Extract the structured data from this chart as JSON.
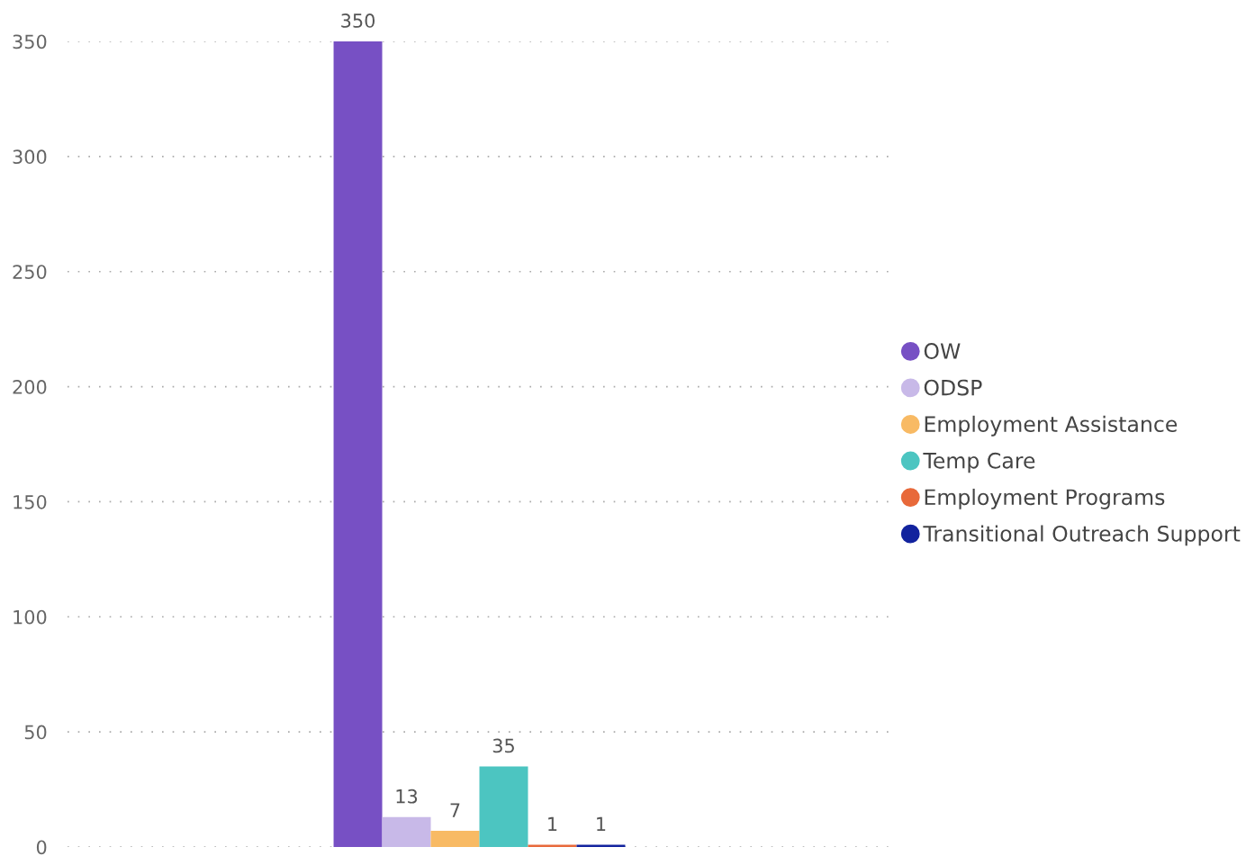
{
  "chart_data": {
    "type": "bar",
    "categories": [
      null
    ],
    "series": [
      {
        "name": "OW",
        "color": "#7750c4",
        "values": [
          350
        ]
      },
      {
        "name": "ODSP",
        "color": "#c8b9e8",
        "values": [
          13
        ]
      },
      {
        "name": "Employment Assistance",
        "color": "#f8ba64",
        "values": [
          7
        ]
      },
      {
        "name": "Temp Care",
        "color": "#4cc5c1",
        "values": [
          35
        ]
      },
      {
        "name": "Employment Programs",
        "color": "#e8693a",
        "values": [
          1
        ]
      },
      {
        "name": "Transitional Outreach Support",
        "color": "#12239e",
        "values": [
          1
        ]
      }
    ],
    "ylim": [
      0,
      350
    ],
    "yticks": [
      0,
      50,
      100,
      150,
      200,
      250,
      300,
      350
    ],
    "grid": "y",
    "legend": "right",
    "tick_labels": "y",
    "data_labels": true,
    "marker": "circle"
  }
}
